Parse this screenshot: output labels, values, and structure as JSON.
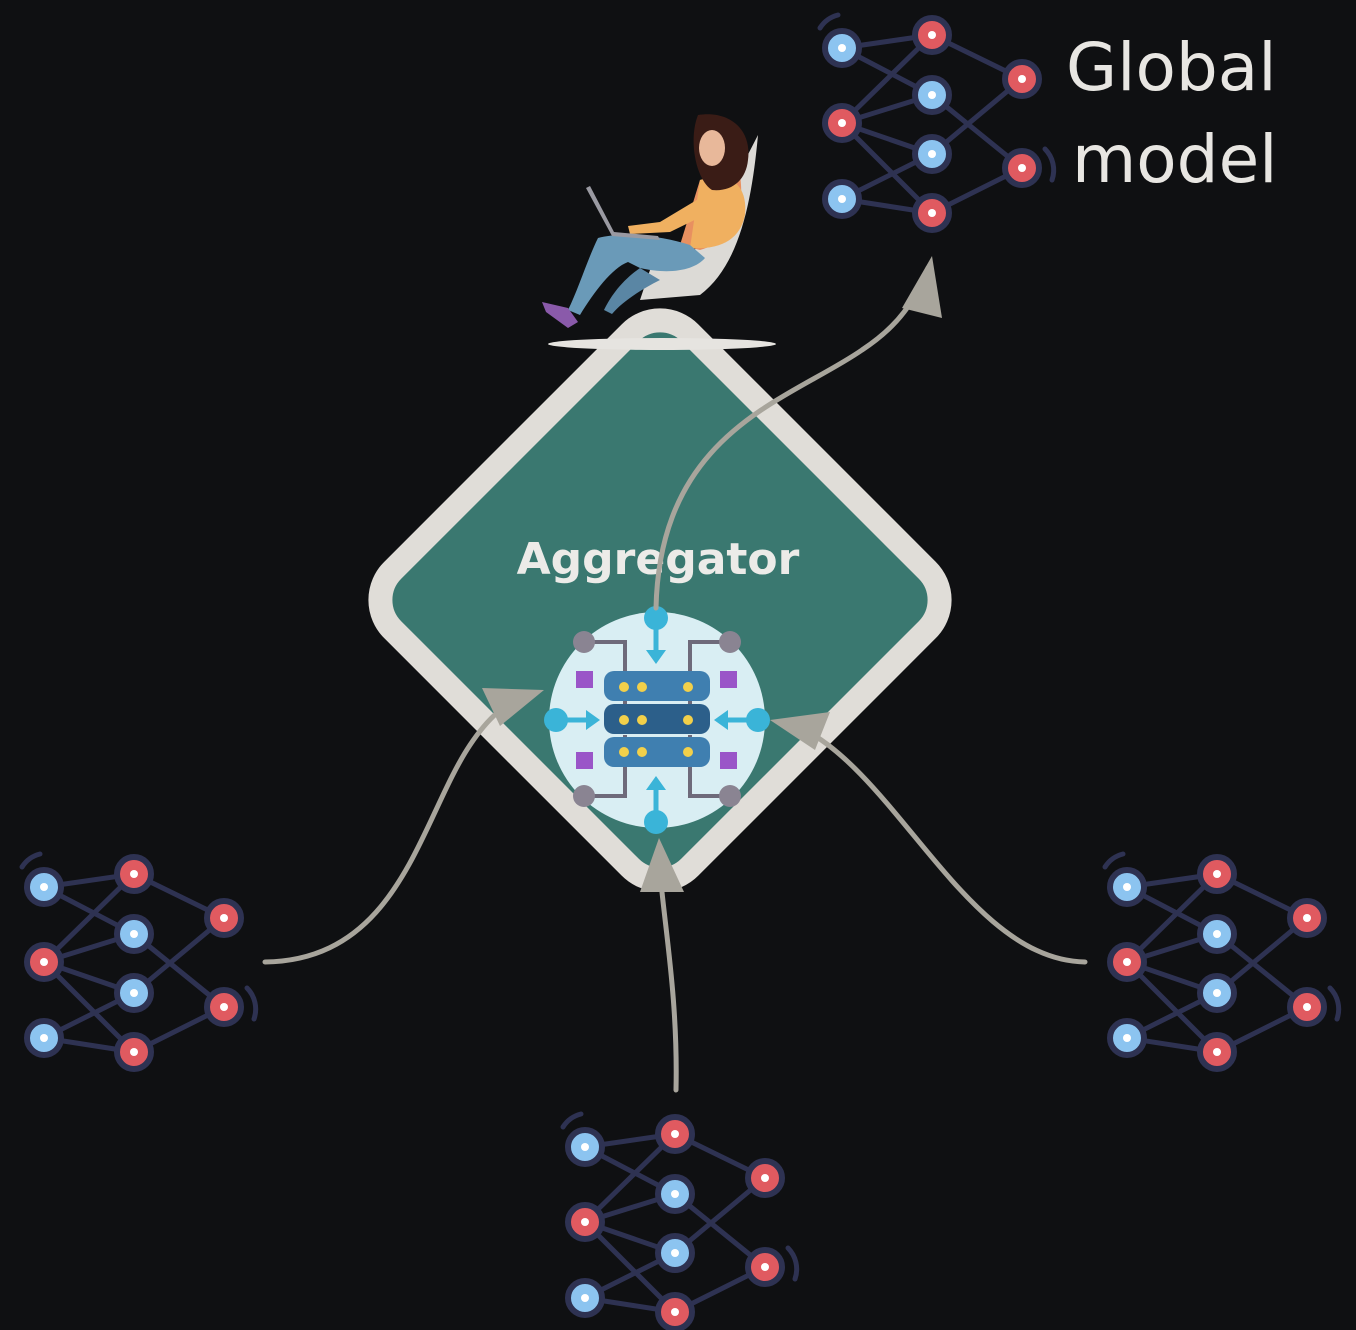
{
  "aggregator": {
    "label": "Aggregator"
  },
  "global_model": {
    "line1": "Global",
    "line2": "model"
  },
  "colors": {
    "background": "#0f1012",
    "diamond_fill": "#3a7870",
    "diamond_border": "#e0ddd8",
    "arrow": "#a8a59c",
    "node_blue": "#8cc4f0",
    "node_red": "#e05a60",
    "edge": "#2e3252"
  },
  "icons": [
    "person-with-laptop-icon",
    "server-aggregation-icon",
    "neural-network-icon"
  ]
}
